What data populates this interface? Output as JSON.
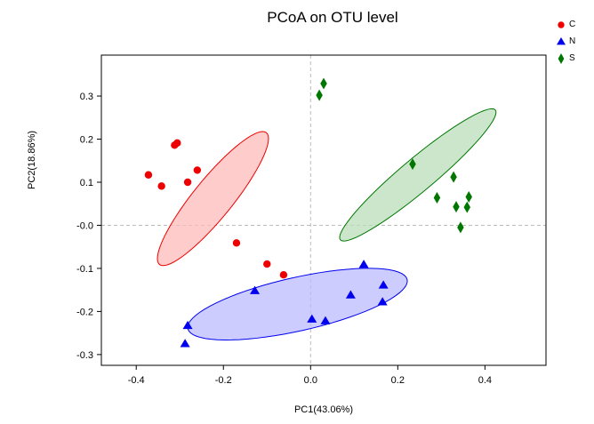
{
  "chart_data": {
    "type": "scatter",
    "title": "PCoA on OTU level",
    "xlabel": "PC1(43.06%)",
    "ylabel": "PC2(18.86%)",
    "xlim": [
      -0.48,
      0.54
    ],
    "ylim": [
      -0.325,
      0.395
    ],
    "xticks": [
      -0.4,
      -0.2,
      0.0,
      0.2,
      0.4
    ],
    "xtick_labels": [
      "-0.4",
      "-0.2",
      "0.0",
      "0.2",
      "0.4"
    ],
    "yticks": [
      0.3,
      0.2,
      0.1,
      0.0,
      -0.1,
      -0.2,
      -0.3
    ],
    "ytick_labels": [
      "0.3",
      "0.2",
      "0.1",
      "-0.0",
      "-0.1",
      "-0.2",
      "-0.3"
    ],
    "reference_lines": {
      "x": 0,
      "y": 0,
      "style": "dashed",
      "color": "#bbbbbb"
    },
    "legend_position": "top-right, outside plot",
    "series": [
      {
        "name": "C",
        "marker": "circle",
        "color": "#ee0000",
        "fill": "#ffbbbb",
        "points": [
          {
            "x": -0.372,
            "y": 0.117
          },
          {
            "x": -0.342,
            "y": 0.091
          },
          {
            "x": -0.312,
            "y": 0.186
          },
          {
            "x": -0.306,
            "y": 0.191
          },
          {
            "x": -0.282,
            "y": 0.1
          },
          {
            "x": -0.26,
            "y": 0.128
          },
          {
            "x": -0.17,
            "y": -0.041
          },
          {
            "x": -0.1,
            "y": -0.09
          },
          {
            "x": -0.062,
            "y": -0.115
          }
        ],
        "ellipse": {
          "cx": -0.224,
          "cy": 0.062,
          "rx": 0.196,
          "ry": 0.045,
          "angle_deg": 51.3
        }
      },
      {
        "name": "N",
        "marker": "triangle",
        "color": "#0000ee",
        "fill": "#bbbbff",
        "points": [
          {
            "x": -0.288,
            "y": -0.275
          },
          {
            "x": -0.282,
            "y": -0.233
          },
          {
            "x": -0.128,
            "y": -0.152
          },
          {
            "x": 0.003,
            "y": -0.218
          },
          {
            "x": 0.034,
            "y": -0.222
          },
          {
            "x": 0.092,
            "y": -0.162
          },
          {
            "x": 0.122,
            "y": -0.091
          },
          {
            "x": 0.165,
            "y": -0.178
          },
          {
            "x": 0.167,
            "y": -0.139
          }
        ],
        "ellipse": {
          "cx": -0.03,
          "cy": -0.183,
          "rx": 0.258,
          "ry": 0.062,
          "angle_deg": 12.8
        }
      },
      {
        "name": "S",
        "marker": "diamond",
        "color": "#007700",
        "fill": "#bbddbb",
        "points": [
          {
            "x": 0.02,
            "y": 0.302
          },
          {
            "x": 0.03,
            "y": 0.329
          },
          {
            "x": 0.234,
            "y": 0.142
          },
          {
            "x": 0.29,
            "y": 0.064
          },
          {
            "x": 0.328,
            "y": 0.112
          },
          {
            "x": 0.334,
            "y": 0.043
          },
          {
            "x": 0.344,
            "y": -0.005
          },
          {
            "x": 0.359,
            "y": 0.042
          },
          {
            "x": 0.363,
            "y": 0.066
          }
        ],
        "ellipse": {
          "cx": 0.246,
          "cy": 0.117,
          "rx": 0.233,
          "ry": 0.038,
          "angle_deg": 40.3
        }
      }
    ]
  }
}
